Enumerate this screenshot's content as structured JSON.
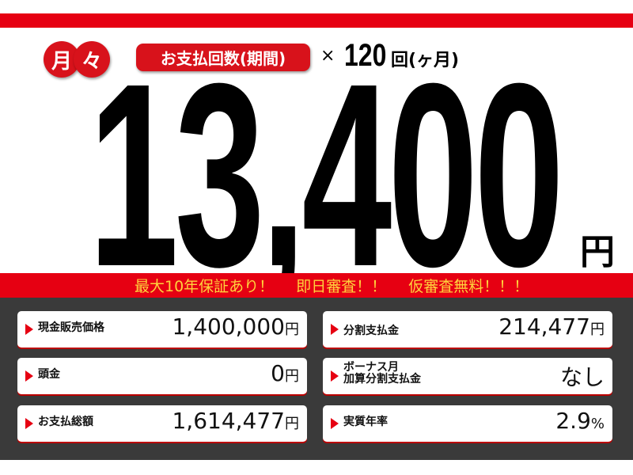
{
  "header": {
    "badge_chars": [
      "月",
      "々"
    ],
    "pill": "お支払回数(期間)",
    "times": "×",
    "count": "120",
    "unit": "回(ヶ月)"
  },
  "price": {
    "amount": "13,400",
    "yen": "円"
  },
  "banner": [
    "最大10年保証あり！",
    "即日審査！！",
    "仮審査無料！！！"
  ],
  "items": [
    {
      "label": "現金販売価格",
      "value": "1,400,000",
      "unit": "円"
    },
    {
      "label": "分割支払金",
      "value": "214,477",
      "unit": "円"
    },
    {
      "label": "頭金",
      "value": "0",
      "unit": "円"
    },
    {
      "label": "ボーナス月\n加算分割支払金",
      "value": "なし",
      "unit": ""
    },
    {
      "label": "お支払総額",
      "value": "1,614,477",
      "unit": "円"
    },
    {
      "label": "実質年率",
      "value": "2.9",
      "unit": "%"
    }
  ],
  "colors": {
    "red": "#e60012",
    "yellow": "#ffd23c",
    "panel": "#3a3a3a"
  }
}
